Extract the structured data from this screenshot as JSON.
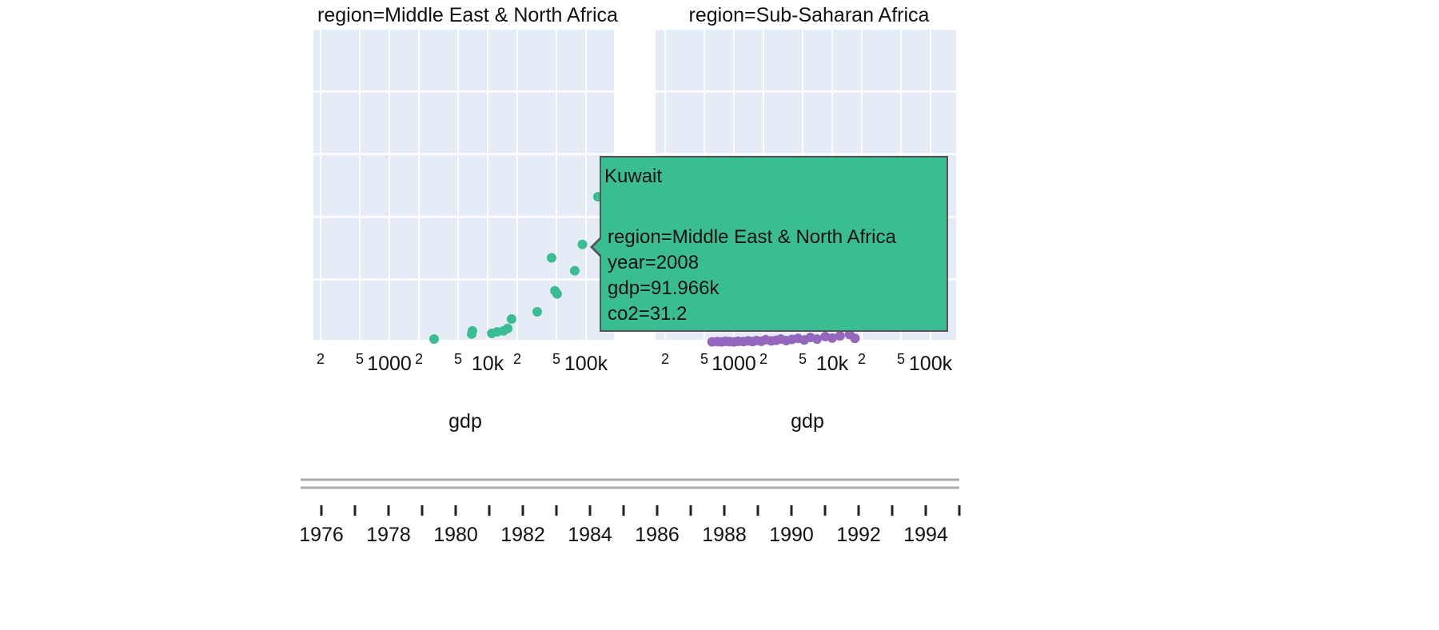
{
  "chart_data": {
    "type": "scatter",
    "xlabel": "gdp",
    "x_scale": "log",
    "grid": true,
    "facets": [
      {
        "title": "region=Middle East & North Africa",
        "color": "#3bbd94",
        "x_tick_labels": [
          "2",
          "5",
          "1000",
          "2",
          "5",
          "10k",
          "2",
          "5",
          "100k"
        ],
        "points": [
          {
            "gdp": 2850,
            "co2": 1.0
          },
          {
            "gdp": 6880,
            "co2": 2.6
          },
          {
            "gdp": 7000,
            "co2": 3.6
          },
          {
            "gdp": 11000,
            "co2": 2.8
          },
          {
            "gdp": 12500,
            "co2": 3.3
          },
          {
            "gdp": 14500,
            "co2": 3.6
          },
          {
            "gdp": 16000,
            "co2": 4.4
          },
          {
            "gdp": 17500,
            "co2": 7.4
          },
          {
            "gdp": 31900,
            "co2": 9.7
          },
          {
            "gdp": 44700,
            "co2": 26.9
          },
          {
            "gdp": 48300,
            "co2": 16.4
          },
          {
            "gdp": 50900,
            "co2": 15.4
          },
          {
            "gdp": 76900,
            "co2": 22.8
          },
          {
            "gdp": 91966,
            "co2": 31.2
          },
          {
            "gdp": 132000,
            "co2": 46.4
          }
        ]
      },
      {
        "title": "region=Sub-Saharan Africa",
        "color": "#9467bd",
        "x_tick_labels": [
          "2",
          "5",
          "1000",
          "2",
          "5",
          "10k",
          "2",
          "5",
          "100k"
        ],
        "points": [
          {
            "gdp": 600,
            "co2": 0.1
          },
          {
            "gdp": 680,
            "co2": 0.2
          },
          {
            "gdp": 750,
            "co2": 0.1
          },
          {
            "gdp": 820,
            "co2": 0.3
          },
          {
            "gdp": 900,
            "co2": 0.2
          },
          {
            "gdp": 1000,
            "co2": 0.1
          },
          {
            "gdp": 1100,
            "co2": 0.3
          },
          {
            "gdp": 1250,
            "co2": 0.2
          },
          {
            "gdp": 1400,
            "co2": 0.4
          },
          {
            "gdp": 1550,
            "co2": 0.2
          },
          {
            "gdp": 1700,
            "co2": 0.5
          },
          {
            "gdp": 1900,
            "co2": 0.3
          },
          {
            "gdp": 2100,
            "co2": 0.8
          },
          {
            "gdp": 2400,
            "co2": 0.4
          },
          {
            "gdp": 2700,
            "co2": 0.6
          },
          {
            "gdp": 3000,
            "co2": 1.0
          },
          {
            "gdp": 3400,
            "co2": 0.5
          },
          {
            "gdp": 3900,
            "co2": 0.9
          },
          {
            "gdp": 4500,
            "co2": 1.2
          },
          {
            "gdp": 5200,
            "co2": 0.7
          },
          {
            "gdp": 6000,
            "co2": 1.5
          },
          {
            "gdp": 7000,
            "co2": 1.0
          },
          {
            "gdp": 8500,
            "co2": 1.8
          },
          {
            "gdp": 10000,
            "co2": 1.3
          },
          {
            "gdp": 12000,
            "co2": 2.0
          },
          {
            "gdp": 15000,
            "co2": 2.5
          },
          {
            "gdp": 17000,
            "co2": 1.2
          }
        ]
      }
    ],
    "ylim": [
      0,
      100
    ],
    "y_grid_values": [
      20,
      40,
      60,
      80,
      100
    ]
  },
  "tooltip": {
    "name": "Kuwait",
    "lines": [
      "region=Middle East & North Africa",
      "year=2008",
      "gdp=91.966k",
      "co2=31.2"
    ]
  },
  "slider": {
    "labels": [
      "1976",
      "1978",
      "1980",
      "1982",
      "1984",
      "1986",
      "1988",
      "1990",
      "1992",
      "1994"
    ],
    "year_start": 1976,
    "year_end": 1995
  }
}
